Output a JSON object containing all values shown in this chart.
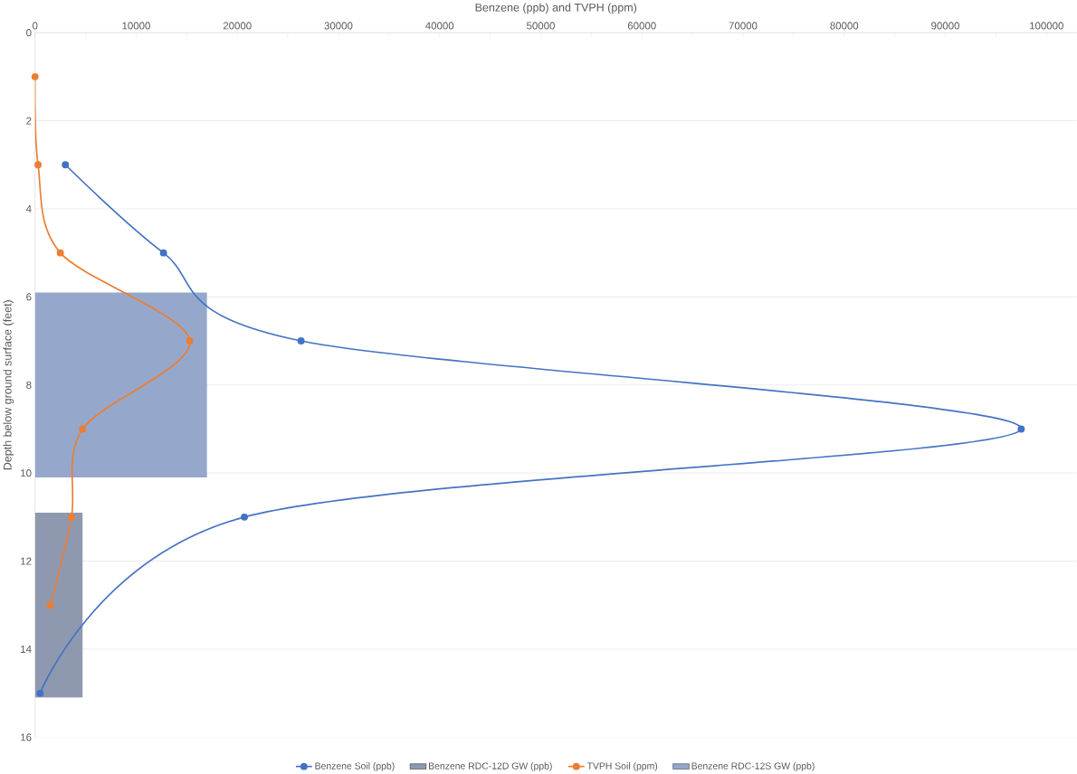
{
  "chart_data": {
    "type": "bar",
    "orientation": "horizontal",
    "xlabel": "Benzene (ppb) and TVPH (ppm)",
    "ylabel": "Depth below ground surface (feet)",
    "xlim": [
      0,
      103000
    ],
    "xticks": [
      0,
      {
        "value": 5000,
        "label": null
      },
      10000,
      {
        "value": 15000,
        "label": null
      },
      20000,
      {
        "value": 25000,
        "label": null
      },
      30000,
      {
        "value": 35000,
        "label": null
      },
      40000,
      {
        "value": 45000,
        "label": null
      },
      50000,
      {
        "value": 55000,
        "label": null
      },
      60000,
      {
        "value": 65000,
        "label": null
      },
      70000,
      {
        "value": 75000,
        "label": null
      },
      80000,
      {
        "value": 85000,
        "label": null
      },
      90000,
      {
        "value": 95000,
        "label": null
      },
      100000
    ],
    "ylim": [
      16,
      0
    ],
    "yticks": [
      0,
      2,
      4,
      6,
      8,
      10,
      12,
      14,
      16
    ],
    "grid": "y",
    "legend": "bottom",
    "marker": "circle",
    "series": [
      {
        "name": "Benzene Soil (ppb)",
        "type": "line",
        "color": "#4472c4",
        "x": [
          3,
          5,
          7,
          9,
          11,
          15
        ],
        "values": [
          3000,
          12700,
          26300,
          97500,
          20700,
          500
        ]
      },
      {
        "name": "Benzene RDC-12D GW (ppb)",
        "color": "#8e99b0",
        "x": [
          13
        ],
        "values": [
          4700
        ]
      },
      {
        "name": "TVPH Soil (ppm)",
        "type": "line",
        "color": "#ed7d31",
        "x": [
          1,
          3,
          5,
          7,
          9,
          11,
          13
        ],
        "values": [
          0,
          300,
          2500,
          15300,
          4700,
          3600,
          1500
        ]
      },
      {
        "name": "Benzene RDC-12S GW (ppb)",
        "color": "#95a8cb",
        "x": [
          8
        ],
        "values": [
          17000
        ]
      }
    ]
  }
}
